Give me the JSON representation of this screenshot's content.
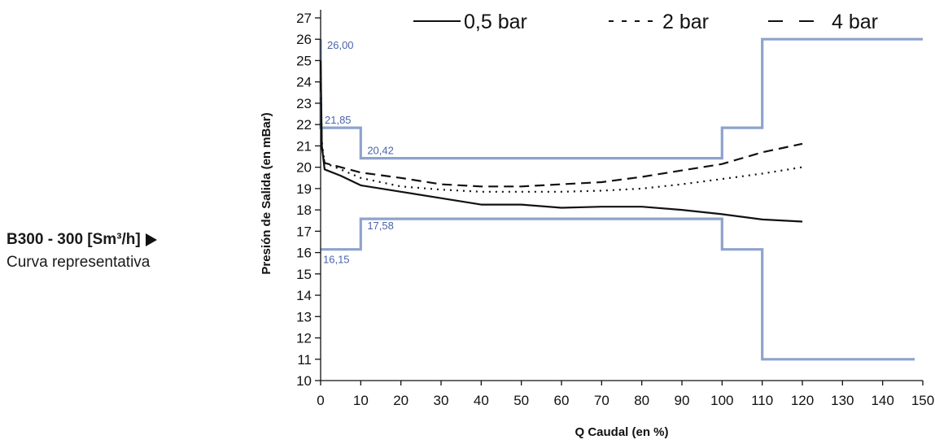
{
  "caption": {
    "model": "B300 - 300 [Sm³/h]",
    "subtitle": "Curva representativa"
  },
  "colors": {
    "limit": "#8ea3cc",
    "annotation": "#4a64a8",
    "curve": "#111111"
  },
  "chart_data": {
    "type": "line",
    "title": "",
    "xlabel": "Q Caudal (en %)",
    "ylabel": "Presión de Salida (en mBar)",
    "xlim": [
      0,
      150
    ],
    "ylim": [
      10,
      27
    ],
    "xticks": [
      0,
      10,
      20,
      30,
      40,
      50,
      60,
      70,
      80,
      90,
      100,
      110,
      120,
      130,
      140,
      150
    ],
    "yticks": [
      10,
      11,
      12,
      13,
      14,
      15,
      16,
      17,
      18,
      19,
      20,
      21,
      22,
      23,
      24,
      25,
      26,
      27
    ],
    "grid": false,
    "legend_position": "top",
    "series": [
      {
        "name": "0,5 bar",
        "style": "solid",
        "x": [
          0,
          0.3,
          1,
          5,
          10,
          20,
          30,
          40,
          50,
          60,
          70,
          80,
          90,
          100,
          110,
          120
        ],
        "y": [
          25.0,
          21.0,
          19.9,
          19.6,
          19.15,
          18.85,
          18.55,
          18.25,
          18.25,
          18.1,
          18.15,
          18.15,
          18.0,
          17.8,
          17.55,
          17.45
        ]
      },
      {
        "name": "2 bar",
        "style": "dotted",
        "x": [
          0,
          0.3,
          1,
          5,
          10,
          20,
          30,
          40,
          50,
          60,
          70,
          80,
          90,
          100,
          110,
          120
        ],
        "y": [
          24.5,
          21.2,
          20.2,
          19.9,
          19.5,
          19.1,
          18.95,
          18.85,
          18.85,
          18.85,
          18.9,
          19.0,
          19.2,
          19.45,
          19.7,
          20.0
        ]
      },
      {
        "name": "4 bar",
        "style": "dashed",
        "x": [
          0,
          0.3,
          1,
          5,
          10,
          20,
          30,
          40,
          50,
          60,
          70,
          80,
          90,
          100,
          110,
          120
        ],
        "y": [
          24.0,
          20.9,
          20.2,
          20.0,
          19.75,
          19.5,
          19.2,
          19.1,
          19.1,
          19.2,
          19.3,
          19.55,
          19.85,
          20.15,
          20.7,
          21.1
        ]
      }
    ],
    "limits": {
      "upper": {
        "x": [
          0,
          0,
          10,
          10,
          100,
          100,
          110,
          110,
          150
        ],
        "y": [
          26,
          21.85,
          21.85,
          20.42,
          20.42,
          21.85,
          21.85,
          26,
          26
        ]
      },
      "lower": {
        "x": [
          0,
          10,
          10,
          100,
          100,
          110,
          110,
          148
        ],
        "y": [
          16.15,
          16.15,
          17.58,
          17.58,
          16.15,
          16.15,
          11,
          11
        ]
      }
    },
    "annotations": [
      {
        "text": "26,00",
        "x": 0,
        "y": 26.0
      },
      {
        "text": "21,85",
        "x": 0,
        "y": 21.85
      },
      {
        "text": "20,42",
        "x": 10,
        "y": 20.42
      },
      {
        "text": "17,58",
        "x": 10,
        "y": 17.58
      },
      {
        "text": "16,15",
        "x": 0,
        "y": 16.15
      }
    ]
  }
}
